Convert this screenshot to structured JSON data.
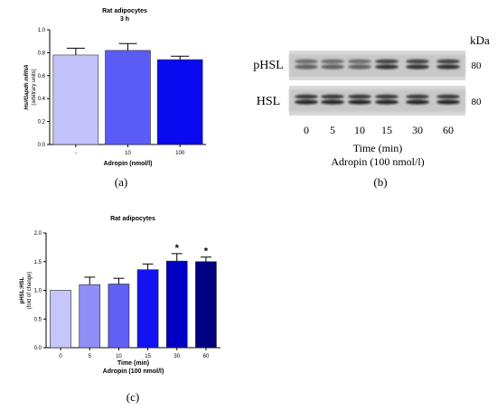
{
  "chart_data": [
    {
      "type": "bar",
      "title": "Rat adipocytes",
      "subtitle": "3 h",
      "ylabel_gene": "Hsl",
      "ylabel_rest": "/Gapdh mRNA",
      "ylabel2": "(arbitrary units)",
      "xlabel": "Adropin (nmol/l)",
      "categories": [
        "-",
        "10",
        "100"
      ],
      "values": [
        0.78,
        0.82,
        0.74
      ],
      "errors": [
        0.06,
        0.06,
        0.03
      ],
      "colors": [
        "#c3c3fb",
        "#5b5bf5",
        "#0a0af0"
      ],
      "ylim": [
        0,
        1.0
      ],
      "yticks": [
        "0.0",
        "0.2",
        "0.4",
        "0.6",
        "0.8",
        "1.0"
      ],
      "caption": "(a)"
    },
    {
      "type": "bar",
      "title": "Rat adipocytes",
      "ylabel": "pHSL:HSL",
      "ylabel2": "(fold of change)",
      "xlabel_line1": "Time (min)",
      "xlabel_line2": "Adropin (100 nmol/l)",
      "categories": [
        "0",
        "5",
        "10",
        "15",
        "30",
        "60"
      ],
      "values": [
        1.0,
        1.1,
        1.11,
        1.36,
        1.51,
        1.5
      ],
      "errors": [
        0,
        0.13,
        0.1,
        0.1,
        0.13,
        0.08
      ],
      "significance": [
        "",
        "",
        "",
        "",
        "*",
        "*"
      ],
      "colors": [
        "#c6c6fa",
        "#8f8ff6",
        "#6060f4",
        "#1212f2",
        "#0000c4",
        "#000080"
      ],
      "ylim": [
        0,
        2.0
      ],
      "yticks": [
        "0.0",
        "0.5",
        "1.0",
        "1.5",
        "2.0"
      ],
      "caption": "(c)"
    }
  ],
  "blot": {
    "kda_label": "kDa",
    "rows": [
      {
        "label": "pHSL",
        "mw": "80"
      },
      {
        "label": "HSL",
        "mw": "80"
      }
    ],
    "lanes": [
      "0",
      "5",
      "10",
      "15",
      "30",
      "60"
    ],
    "xlabel_line1": "Time (min)",
    "xlabel_line2": "Adropin (100 nmol/l)",
    "caption": "(b)"
  }
}
